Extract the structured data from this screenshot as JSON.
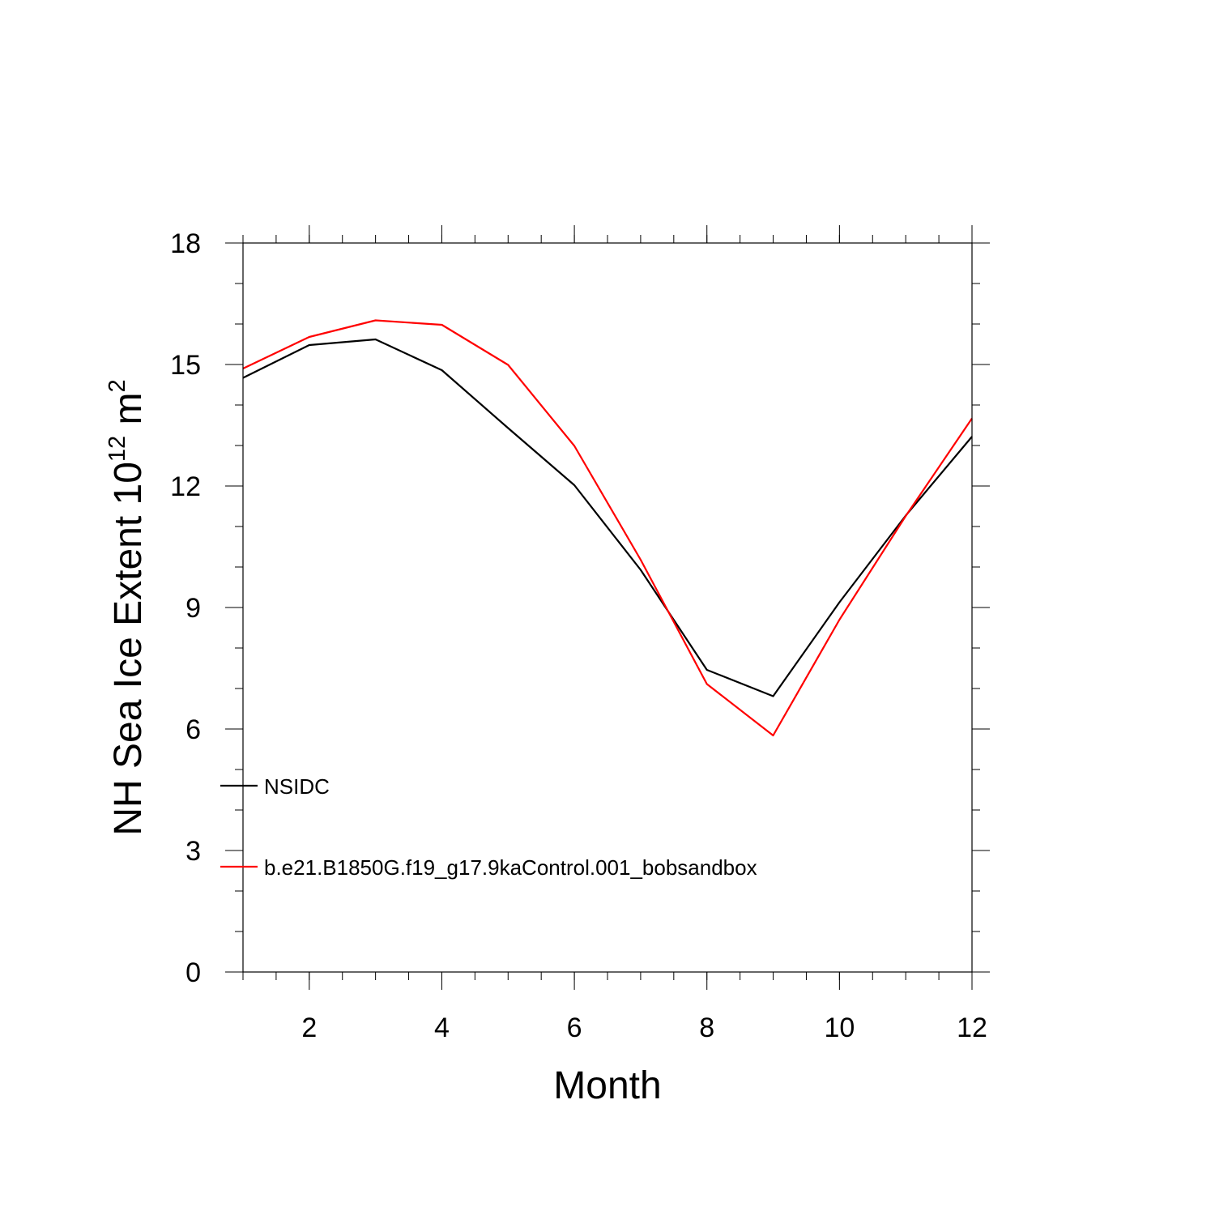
{
  "chart_data": {
    "type": "line",
    "xlabel": "Month",
    "ylabel": "NH Sea Ice Extent 10",
    "ylabel_sup1": "12",
    "ylabel_unit": " m",
    "ylabel_sup2": "2",
    "xlim": [
      1,
      12
    ],
    "ylim": [
      0,
      18
    ],
    "xticks": [
      2,
      4,
      6,
      8,
      10,
      12
    ],
    "yticks": [
      0,
      3,
      6,
      9,
      12,
      15,
      18
    ],
    "x": [
      1,
      2,
      3,
      4,
      5,
      6,
      7,
      8,
      9,
      10,
      11,
      12
    ],
    "series": [
      {
        "name": "NSIDC",
        "color": "#000000",
        "values": [
          14.67,
          15.48,
          15.62,
          14.86,
          13.43,
          12.02,
          9.93,
          7.46,
          6.81,
          9.13,
          11.27,
          13.22
        ]
      },
      {
        "name": "b.e21.B1850G.f19_g17.9kaControl.001_bobsandbox",
        "color": "#ff0000",
        "values": [
          14.9,
          15.68,
          16.09,
          15.98,
          14.99,
          12.99,
          10.18,
          7.11,
          5.84,
          8.7,
          11.26,
          13.67
        ]
      }
    ],
    "legend": "lower-left inside",
    "grid": false
  }
}
